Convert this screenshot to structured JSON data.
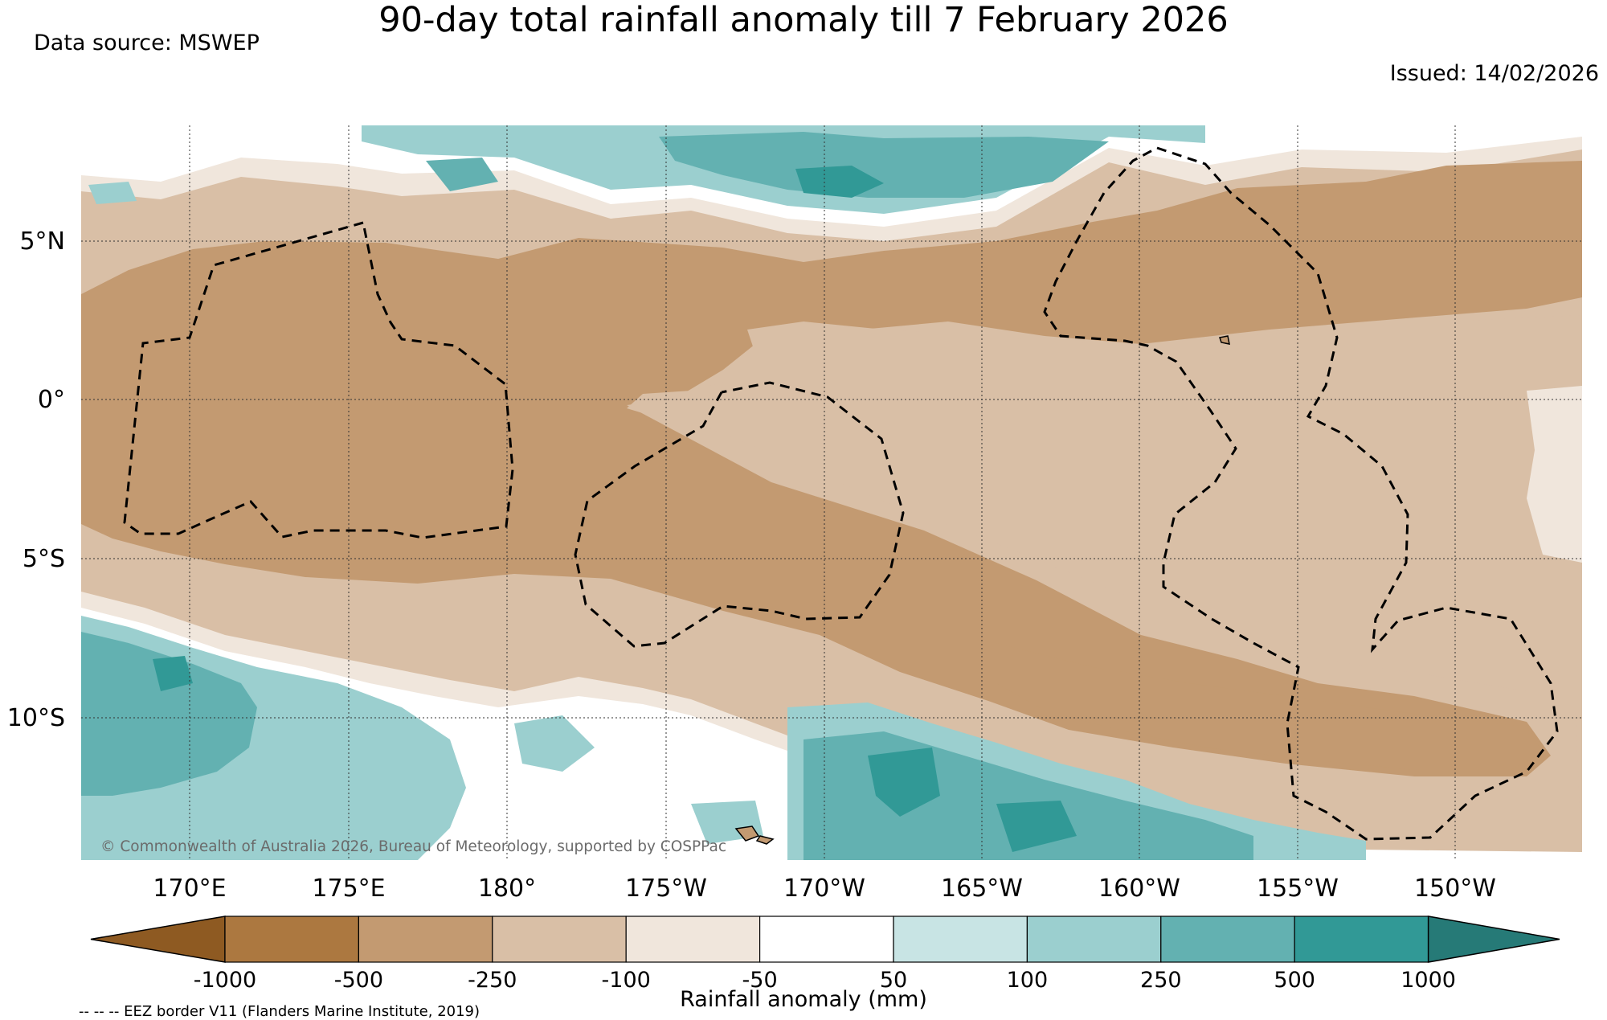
{
  "title": "90-day total rainfall anomaly till 7 February 2026",
  "data_source": "Data source: MSWEP",
  "issued": "Issued: 14/02/2026",
  "copyright": "© Commonwealth of Australia 2026, Bureau of Meteorology, supported by COSPPac",
  "lat_labels": [
    "5°N",
    "0°",
    "5°S",
    "10°S"
  ],
  "lon_labels": [
    "170°E",
    "175°E",
    "180°",
    "175°W",
    "170°W",
    "165°W",
    "160°W",
    "155°W",
    "150°W"
  ],
  "colorbar": {
    "ticks": [
      "-1000",
      "-500",
      "-250",
      "-100",
      "-50",
      "50",
      "100",
      "250",
      "500",
      "1000"
    ],
    "colors": [
      "#8e5a22",
      "#ac7840",
      "#c39a71",
      "#d9bfa6",
      "#f0e6dc",
      "#ffffff",
      "#c8e4e4",
      "#9bcfcf",
      "#63b1b1",
      "#319996",
      "#267a77"
    ],
    "label": "Rainfall anomaly (mm)"
  },
  "legend_note": "-- -- -- EEZ border V11 (Flanders Marine Institute, 2019)",
  "palette": {
    "dark_brown": "#c39a71",
    "light_brown": "#d9bfa6",
    "pale": "#f0e6dc",
    "light_teal": "#9bcfcf",
    "mid_teal": "#63b1b1",
    "dark_teal": "#319996"
  }
}
